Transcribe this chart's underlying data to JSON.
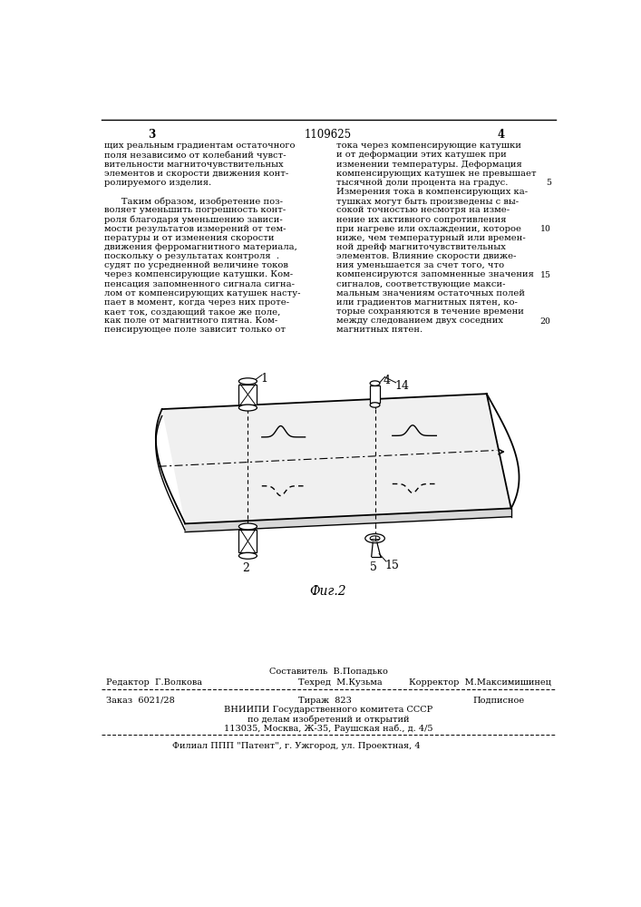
{
  "page_num_left": "3",
  "page_num_center": "1109625",
  "page_num_right": "4",
  "col1_text": [
    "щих реальным градиентам остаточного",
    "поля независимо от колебаний чувст-",
    "вительности магниточувствительных",
    "элементов и скорости движения конт-",
    "ролируемого изделия.",
    "",
    "      Таким образом, изобретение поз-",
    "воляет уменьшить погрешность конт-",
    "роля благодаря уменьшению зависи-",
    "мости результатов измерений от тем-",
    "пературы и от изменения скорости",
    "движения ферромагнитного материала,",
    "поскольку о результатах контроля  .",
    "судят по усредненной величине токов",
    "через компенсирующие катушки. Ком-",
    "пенсация запомненного сигнала сигна-",
    "лом от компенсирующих катушек насту-",
    "пает в момент, когда через них проте-",
    "кает ток, создающий такое же поле,",
    "как поле от магнитного пятна. Ком-",
    "пенсирующее поле зависит только от"
  ],
  "col2_text": [
    "тока через компенсирующие катушки",
    "и от деформации этих катушек при",
    "изменении температуры. Деформация",
    "компенсирующих катушек не превышает",
    "тысячной доли процента на градус.",
    "Измерения тока в компенсирующих ка-",
    "тушках могут быть произведены с вы-",
    "сокой точностью несмотря на изме-",
    "нение их активного сопротивления",
    "при нагреве или охлаждении, которое",
    "ниже, чем температурный или времен-",
    "ной дрейф магниточувствительных",
    "элементов. Влияние скорости движе-",
    "ния уменьшается за счет того, что",
    "компенсируются запомненные значения",
    "сигналов, соответствующие макси-",
    "мальным значениям остаточных полей",
    "или градиентов магнитных пятен, ко-",
    "торые сохраняются в течение времени",
    "между следованием двух соседних",
    "магнитных пятен."
  ],
  "col2_line_numbers": [
    5,
    10,
    15,
    20
  ],
  "fig_caption": "Фиг.2",
  "footer_sestavitel": "Составитель  В.Попадько",
  "footer_redaktor": "Редактор  Г.Волкова",
  "footer_tehred": "Техред  М.Кузьма",
  "footer_korrektor": "Корректор  М.Максимишинец",
  "footer_zakaz": "Заказ  6021/28",
  "footer_tirazh": "Тираж  823",
  "footer_podpisnoe": "Подписное",
  "footer_vniip1": "ВНИИПИ Государственного комитета СССР",
  "footer_vniip2": "по делам изобретений и открытий",
  "footer_vniip3": "113035, Москва, Ж-35, Раушская наб., д. 4/5",
  "footer_filial": "Филиал ППП \"Патент\", г. Ужгород, ул. Проектная, 4",
  "bg_color": "#ffffff",
  "text_color": "#000000",
  "font_size_main": 7.2,
  "font_size_footer": 7.0,
  "font_size_header": 8.5
}
